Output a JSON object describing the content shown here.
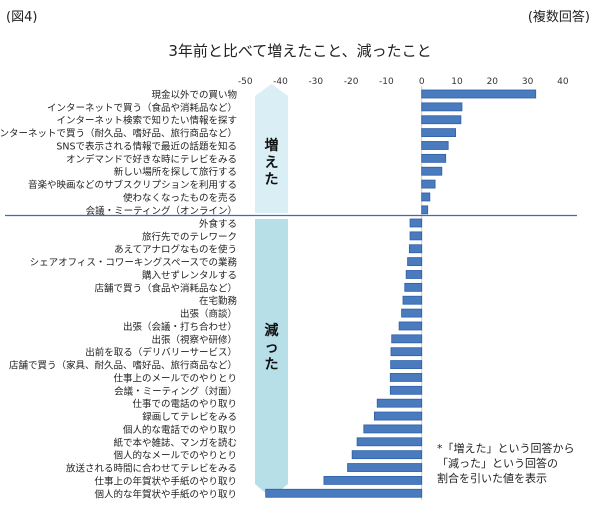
{
  "figure_label": "(図4)",
  "response_type": "(複数回答)",
  "note_lines": [
    "*「増えた」という回答から",
    "「減った」という回答の",
    "割合を引いた値を表示"
  ],
  "chart_data": {
    "type": "bar",
    "orientation": "horizontal",
    "title": "3年前と比べて増えたこと、減ったこと",
    "xlim": [
      -50,
      40
    ],
    "xticks": [
      -50,
      -40,
      -30,
      -20,
      -10,
      0,
      10,
      20,
      30,
      40
    ],
    "grid": false,
    "bar_color": "#4a7bbf",
    "groups": [
      {
        "label": "増えた",
        "color": "#daeef5",
        "direction": "up",
        "categories": [
          "現金以外での買い物",
          "インターネットで買う（食品や消耗品など）",
          "インターネット検索で知りたい情報を探す",
          "インターネットで買う（耐久品、嗜好品、旅行商品など）",
          "SNSで表示される情報で最近の話題を知る",
          "オンデマンドで好きな時にテレビをみる",
          "新しい場所を探して旅行する",
          "音楽や映画などのサブスクリプションを利用する",
          "使わなくなったものを売る",
          "会議・ミーティング（オンライン）"
        ],
        "values": [
          32.3,
          11.4,
          11.1,
          9.6,
          7.5,
          6.8,
          5.7,
          3.8,
          2.3,
          1.7
        ]
      },
      {
        "label": "減った",
        "color": "#b7dfe8",
        "direction": "down",
        "categories": [
          "外食する",
          "旅行先でのテレワーク",
          "あえてアナログなものを使う",
          "シェアオフィス・コワーキングスペースでの業務",
          "購入せずレンタルする",
          "店舗で買う（食品や消耗品など）",
          "在宅勤務",
          "出張（商談）",
          "出張（会議・打ち合わせ）",
          "出張（視察や研修）",
          "出前を取る（デリバリーサービス）",
          "店舗で買う（家具、耐久品、嗜好品、旅行商品など）",
          "仕事上のメールでのやりとり",
          "会議・ミーティング（対面）",
          "仕事での電話のやり取り",
          "録画してテレビをみる",
          "個人的な電話でのやり取り",
          "紙で本や雑誌、マンガを読む",
          "個人的なメールでのやりとり",
          "放送される時間に合わせてテレビをみる",
          "仕事上の年賀状や手紙のやり取り",
          "個人的な年賀状や手紙のやり取り"
        ],
        "values": [
          -3.3,
          -3.3,
          -3.5,
          -4.0,
          -4.4,
          -4.8,
          -5.3,
          -5.7,
          -6.4,
          -8.5,
          -8.7,
          -8.8,
          -8.9,
          -8.9,
          -12.6,
          -13.4,
          -16.4,
          -18.3,
          -19.7,
          -21.0,
          -27.7,
          -44.2
        ]
      }
    ]
  }
}
